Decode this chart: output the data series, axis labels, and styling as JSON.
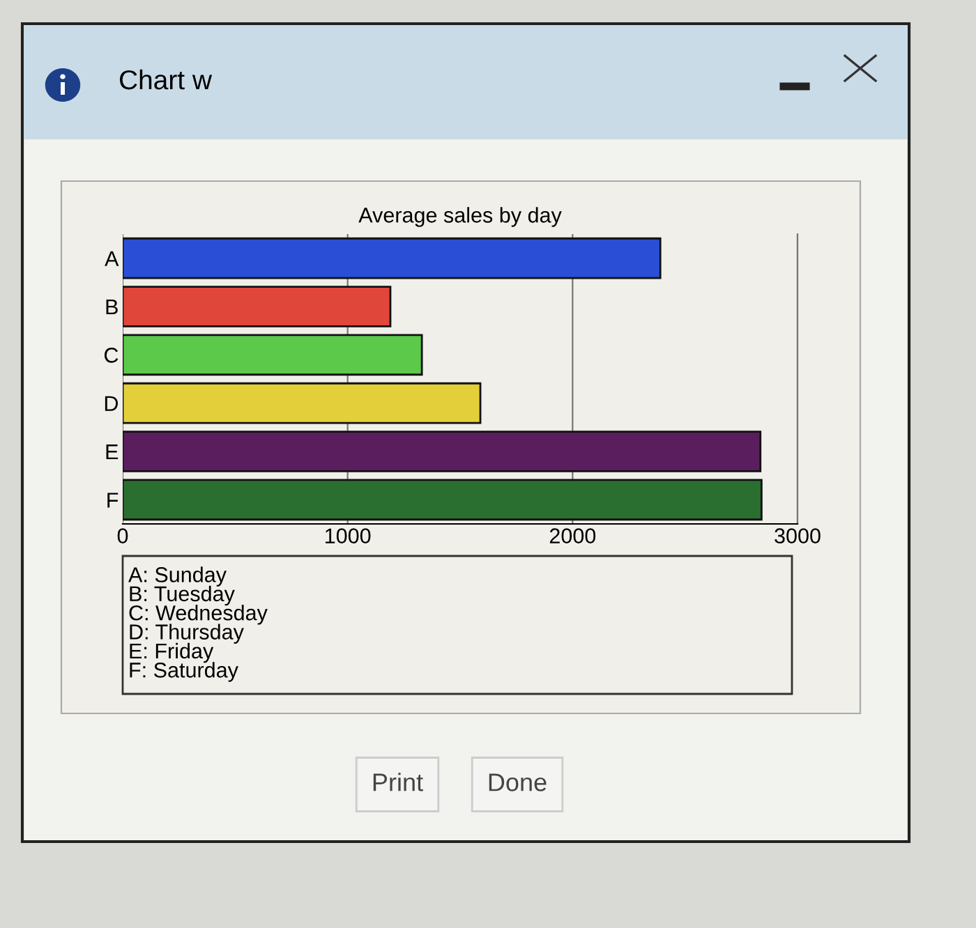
{
  "chart_data": {
    "type": "bar",
    "orientation": "horizontal",
    "title": "Average sales by day",
    "categories": [
      "A",
      "B",
      "C",
      "D",
      "E",
      "F"
    ],
    "values": [
      2390,
      1190,
      1330,
      1590,
      2835,
      2840
    ],
    "colors": [
      "#2a4fd6",
      "#e0463a",
      "#5cc94a",
      "#e2cf3a",
      "#5a1e5e",
      "#2a6e30"
    ],
    "xlim": [
      0,
      3000
    ],
    "xticks": [
      0,
      1000,
      2000,
      3000
    ],
    "grid": "x",
    "annotations": [
      "Chart w",
      "A: Sunday\nB: Tuesday\nC: Wednesday\nD: Thursday\nE: Friday\nF: Saturday",
      "Print",
      "Done"
    ]
  }
}
